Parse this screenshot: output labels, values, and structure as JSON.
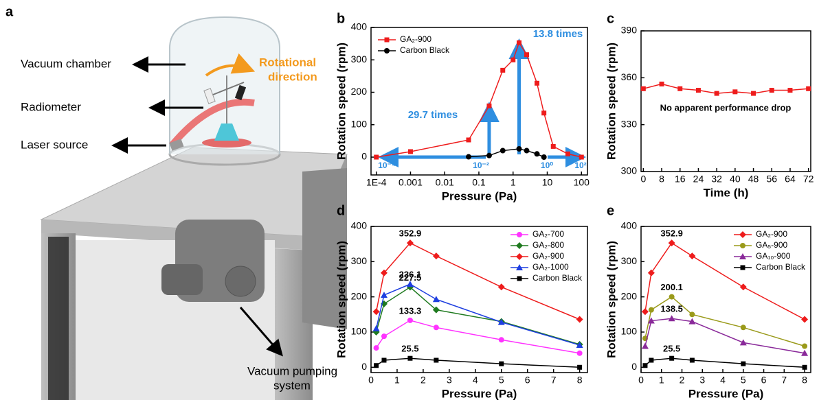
{
  "panel_a": {
    "letter": "a",
    "labels": [
      "Vacuum chamber",
      "Radiometer",
      "Laser source"
    ],
    "pump_label": [
      "Vacuum pumping",
      "system"
    ],
    "rotation_label": [
      "Rotational",
      "direction"
    ]
  },
  "chart_data": [
    {
      "type": "line",
      "panel": "b",
      "xlabel": "Pressure (Pa)",
      "ylabel": "Rotation speed (rpm)",
      "xscale": "log",
      "xlim": [
        7e-05,
        150
      ],
      "xticks": [
        {
          "value": 0.0001,
          "label": "1E-4"
        },
        0.001,
        0.01,
        0.1,
        1,
        10,
        100
      ],
      "ylim": [
        -55,
        400
      ],
      "yticks": [
        0,
        100,
        200,
        300,
        400
      ],
      "legend": "upper left",
      "annotations": [
        "29.7 times",
        "13.8 times",
        "10⁻⁴",
        "10⁻²",
        "10⁰",
        "10²"
      ],
      "series": [
        {
          "name": "GA₂-900",
          "color": "#ee1c1c",
          "marker": "square",
          "x": [
            0.0001,
            0.001,
            0.05,
            0.2,
            0.5,
            1,
            1.5,
            2.5,
            5,
            8,
            15,
            40,
            100
          ],
          "values": [
            0,
            17,
            53,
            158,
            268,
            300,
            352.9,
            316,
            228,
            136,
            33,
            10,
            0
          ]
        },
        {
          "name": "Carbon Black",
          "color": "#000000",
          "marker": "circle",
          "x": [
            0.05,
            0.2,
            0.5,
            1.5,
            2.5,
            5,
            8
          ],
          "values": [
            1,
            5,
            20,
            25.5,
            20,
            10,
            0
          ]
        }
      ]
    },
    {
      "type": "line",
      "panel": "c",
      "xlabel": "Time (h)",
      "ylabel": "Rotation speed (rpm)",
      "xlim": [
        -1,
        73
      ],
      "xticks": [
        0,
        8,
        16,
        24,
        32,
        40,
        48,
        56,
        64,
        72
      ],
      "ylim": [
        300,
        390
      ],
      "yticks": [
        300,
        330,
        360,
        390
      ],
      "annotations": [
        "No apparent performance drop"
      ],
      "series": [
        {
          "color": "#ee1c1c",
          "marker": "square",
          "x": [
            0,
            8,
            16,
            24,
            32,
            40,
            48,
            56,
            64,
            72
          ],
          "values": [
            353,
            356,
            353,
            352,
            350,
            351,
            350,
            352,
            352,
            353
          ]
        }
      ]
    },
    {
      "type": "line",
      "panel": "d",
      "xlabel": "Pressure (Pa)",
      "ylabel": "Rotation speed (rpm)",
      "xlim": [
        0,
        8.3
      ],
      "xticks": [
        0,
        1,
        2,
        3,
        4,
        5,
        6,
        7,
        8
      ],
      "ylim": [
        -15,
        400
      ],
      "yticks": [
        0,
        100,
        200,
        300,
        400
      ],
      "legend": "upper right",
      "series": [
        {
          "name": "GA₂-700",
          "color": "#ff33ff",
          "marker": "circle",
          "x": [
            0.2,
            0.5,
            1.5,
            2.5,
            5,
            8
          ],
          "values": [
            55,
            88,
            133.3,
            113,
            78,
            40
          ],
          "value_labels": [
            null,
            null,
            "133.3",
            null,
            null,
            null
          ]
        },
        {
          "name": "GA₂-800",
          "color": "#1f7a1f",
          "marker": "diamond",
          "x": [
            0.2,
            0.5,
            1.5,
            2.5,
            5,
            8
          ],
          "values": [
            100,
            180,
            227.5,
            163,
            130,
            65
          ],
          "value_labels": [
            null,
            null,
            "227.5",
            null,
            null,
            null
          ]
        },
        {
          "name": "GA₂-900",
          "color": "#ee1c1c",
          "marker": "diamond",
          "x": [
            0.2,
            0.5,
            1.5,
            2.5,
            5,
            8
          ],
          "values": [
            158,
            268,
            352.9,
            316,
            228,
            136
          ],
          "value_labels": [
            null,
            null,
            "352.9",
            null,
            null,
            null
          ]
        },
        {
          "name": "GA₂-1000",
          "color": "#1f3fe0",
          "marker": "triangle",
          "x": [
            0.2,
            0.5,
            1.5,
            2.5,
            5,
            8
          ],
          "values": [
            110,
            205,
            236.1,
            193,
            128,
            63
          ],
          "value_labels": [
            null,
            null,
            "236.1",
            null,
            null,
            null
          ]
        },
        {
          "name": "Carbon Black",
          "color": "#000000",
          "marker": "square",
          "x": [
            0.2,
            0.5,
            1.5,
            2.5,
            5,
            8
          ],
          "values": [
            5,
            20,
            25.5,
            20,
            10,
            0
          ],
          "value_labels": [
            null,
            null,
            "25.5",
            null,
            null,
            null
          ]
        }
      ]
    },
    {
      "type": "line",
      "panel": "e",
      "xlabel": "Pressure (Pa)",
      "ylabel": "Rotation speed (rpm)",
      "xlim": [
        0,
        8.3
      ],
      "xticks": [
        0,
        1,
        2,
        3,
        4,
        5,
        6,
        7,
        8
      ],
      "ylim": [
        -15,
        400
      ],
      "yticks": [
        0,
        100,
        200,
        300,
        400
      ],
      "legend": "upper right",
      "series": [
        {
          "name": "GA₂-900",
          "color": "#ee1c1c",
          "marker": "diamond",
          "x": [
            0.2,
            0.5,
            1.5,
            2.5,
            5,
            8
          ],
          "values": [
            158,
            268,
            352.9,
            316,
            228,
            136
          ],
          "value_labels": [
            null,
            null,
            "352.9",
            null,
            null,
            null
          ]
        },
        {
          "name": "GA₅-900",
          "color": "#9a9a1a",
          "marker": "circle",
          "x": [
            0.2,
            0.5,
            1.5,
            2.5,
            5,
            8
          ],
          "values": [
            82,
            163,
            200.1,
            150,
            113,
            60
          ],
          "value_labels": [
            null,
            null,
            "200.1",
            null,
            null,
            null
          ]
        },
        {
          "name": "GA₁₀-900",
          "color": "#8a2a9a",
          "marker": "triangle",
          "x": [
            0.2,
            0.5,
            1.5,
            2.5,
            5,
            8
          ],
          "values": [
            60,
            132,
            138.5,
            130,
            70,
            40
          ],
          "value_labels": [
            null,
            null,
            "138.5",
            null,
            null,
            null
          ]
        },
        {
          "name": "Carbon Black",
          "color": "#000000",
          "marker": "square",
          "x": [
            0.2,
            0.5,
            1.5,
            2.5,
            5,
            8
          ],
          "values": [
            5,
            20,
            25.5,
            20,
            10,
            0
          ],
          "value_labels": [
            null,
            null,
            "25.5",
            null,
            null,
            null
          ]
        }
      ]
    }
  ]
}
